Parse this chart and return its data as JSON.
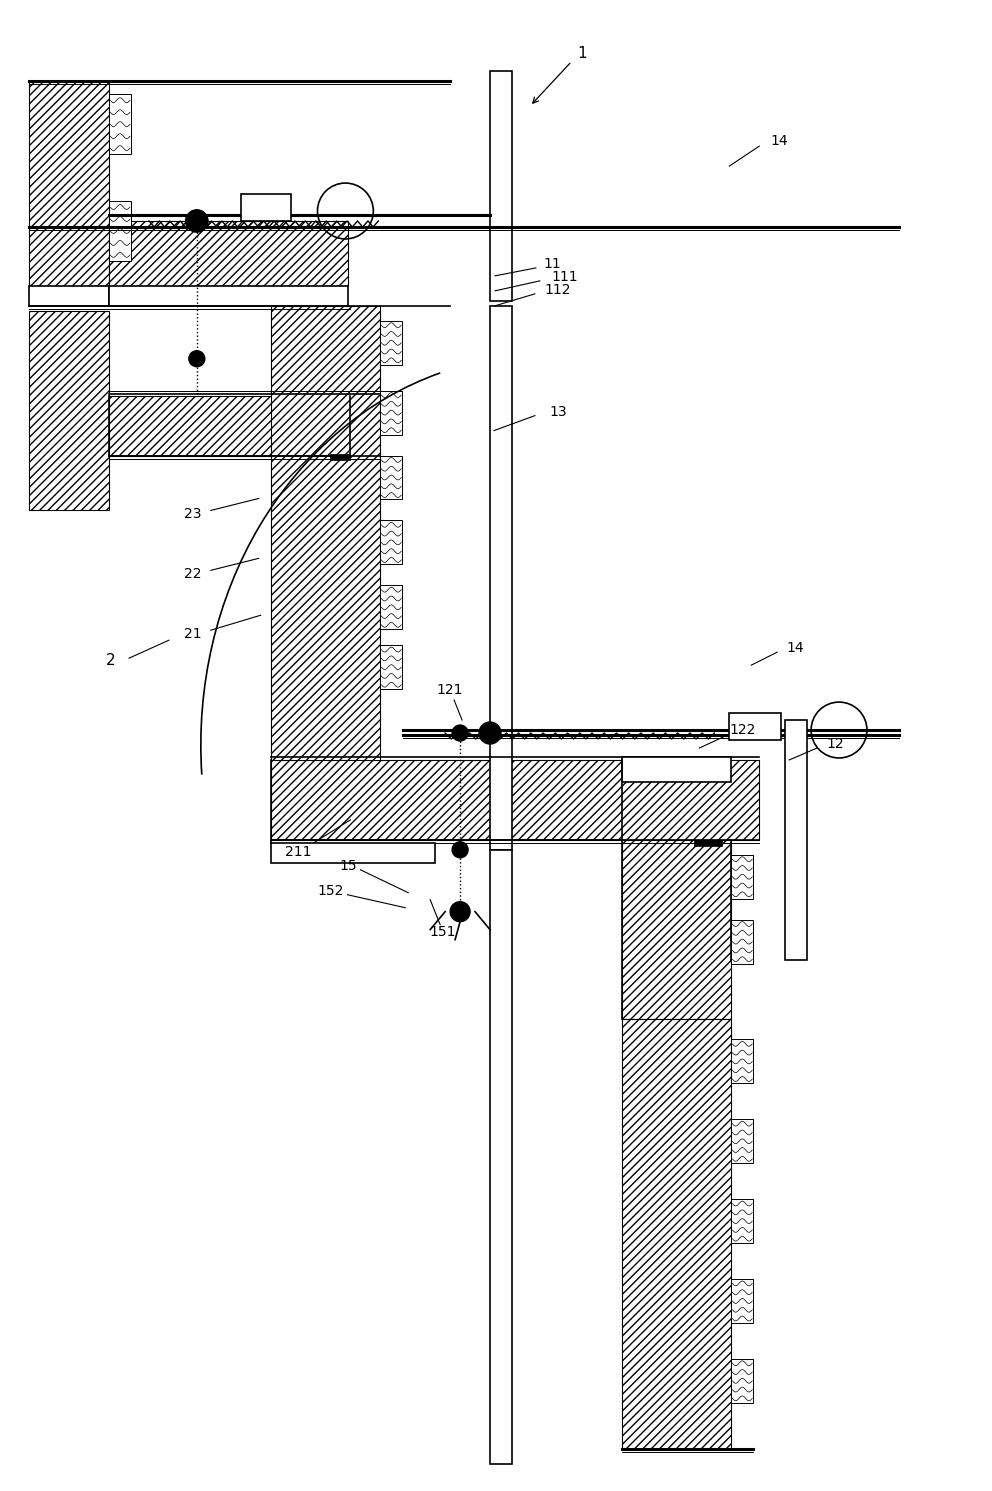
{
  "bg_color": "#ffffff",
  "lw_thin": 0.7,
  "lw_mid": 1.2,
  "lw_thick": 2.2,
  "fig_width": 9.92,
  "fig_height": 14.91
}
